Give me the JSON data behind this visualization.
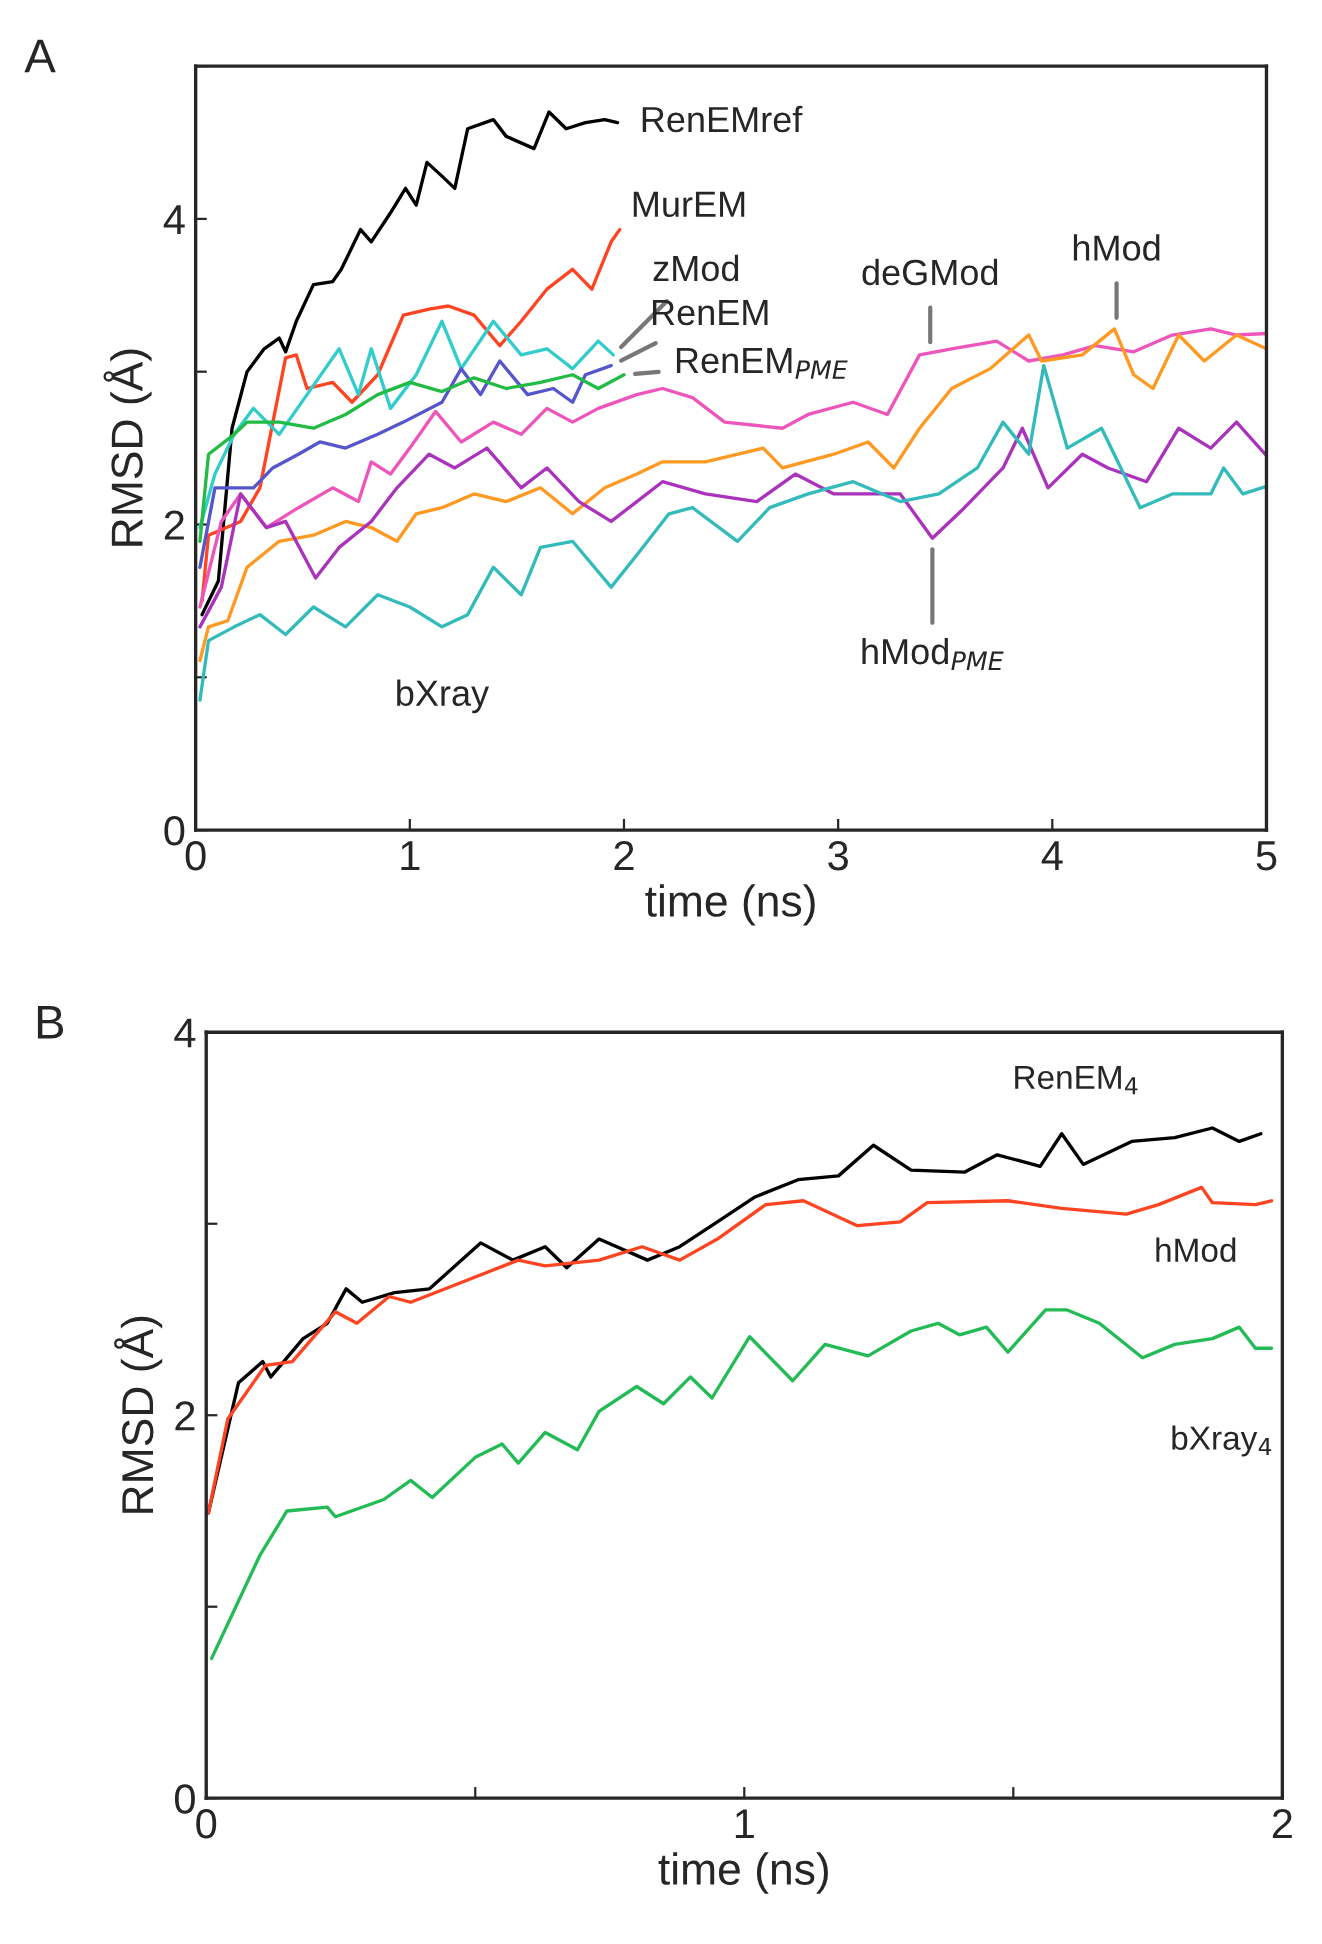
{
  "chart_data": [
    {
      "type": "line",
      "title": "A",
      "xlabel": "time (ns)",
      "ylabel": "RMSD (Å)",
      "xlim": [
        0,
        5
      ],
      "ylim": [
        0,
        5
      ],
      "xticks": [
        0,
        1,
        2,
        3,
        4,
        5
      ],
      "yticks": [
        0,
        {
          "value": 1,
          "label": null
        },
        2,
        {
          "value": 3,
          "label": null
        },
        4,
        {
          "value": 5,
          "label": null
        }
      ],
      "grid": false,
      "legend": false,
      "line_style": "solid",
      "marker": "none",
      "series": [
        {
          "color": "#000000",
          "x": [
            0.03,
            0.106,
            0.17,
            0.24,
            0.32,
            0.39,
            0.42,
            0.47,
            0.55,
            0.64,
            0.68,
            0.77,
            0.82,
            0.91,
            0.98,
            1.03,
            1.08,
            1.15,
            1.21,
            1.27,
            1.39,
            1.45,
            1.58,
            1.65,
            1.73,
            1.82,
            1.91,
            1.97
          ],
          "values": [
            1.41,
            1.63,
            2.63,
            3.0,
            3.15,
            3.22,
            3.13,
            3.33,
            3.57,
            3.59,
            3.67,
            3.93,
            3.85,
            4.04,
            4.2,
            4.09,
            4.37,
            4.28,
            4.2,
            4.59,
            4.65,
            4.54,
            4.46,
            4.7,
            4.59,
            4.63,
            4.65,
            4.63
          ]
        },
        {
          "color": "#ff4422",
          "x": [
            0.03,
            0.06,
            0.21,
            0.3,
            0.42,
            0.47,
            0.52,
            0.64,
            0.73,
            0.85,
            0.97,
            1.09,
            1.18,
            1.3,
            1.42,
            1.52,
            1.64,
            1.76,
            1.85,
            1.94,
            1.98
          ],
          "values": [
            1.5,
            1.93,
            2.02,
            2.24,
            3.09,
            3.11,
            2.89,
            2.93,
            2.8,
            2.98,
            3.37,
            3.41,
            3.43,
            3.37,
            3.17,
            3.33,
            3.54,
            3.67,
            3.54,
            3.85,
            3.93
          ]
        },
        {
          "color": "#33cccc",
          "x": [
            0.02,
            0.09,
            0.18,
            0.27,
            0.39,
            0.52,
            0.67,
            0.76,
            0.82,
            0.91,
            1.03,
            1.15,
            1.24,
            1.39,
            1.52,
            1.64,
            1.76,
            1.88,
            1.95
          ],
          "values": [
            1.98,
            2.33,
            2.59,
            2.76,
            2.59,
            2.85,
            3.15,
            2.85,
            3.15,
            2.76,
            2.98,
            3.33,
            3.02,
            3.33,
            3.11,
            3.15,
            3.02,
            3.2,
            3.11
          ]
        },
        {
          "color": "#5555cc",
          "x": [
            0.02,
            0.09,
            0.18,
            0.27,
            0.36,
            0.48,
            0.58,
            0.7,
            0.85,
            0.97,
            1.15,
            1.24,
            1.33,
            1.42,
            1.55,
            1.67,
            1.76,
            1.82,
            1.94
          ],
          "values": [
            1.72,
            2.24,
            2.24,
            2.24,
            2.37,
            2.46,
            2.54,
            2.5,
            2.59,
            2.67,
            2.8,
            3.02,
            2.85,
            3.07,
            2.85,
            2.89,
            2.8,
            2.98,
            3.04
          ]
        },
        {
          "color": "#22bb44",
          "x": [
            0.02,
            0.06,
            0.18,
            0.24,
            0.39,
            0.55,
            0.7,
            0.85,
            1.0,
            1.15,
            1.3,
            1.45,
            1.61,
            1.76,
            1.88,
            2.0
          ],
          "values": [
            1.89,
            2.46,
            2.59,
            2.67,
            2.67,
            2.63,
            2.72,
            2.85,
            2.93,
            2.87,
            2.96,
            2.89,
            2.93,
            2.98,
            2.89,
            2.98
          ]
        },
        {
          "color": "#ee55bb",
          "x": [
            0.02,
            0.12,
            0.21,
            0.33,
            0.48,
            0.64,
            0.76,
            0.82,
            0.91,
            1.0,
            1.12,
            1.24,
            1.39,
            1.52,
            1.64,
            1.76,
            1.88,
            2.06,
            2.18,
            2.32,
            2.47,
            2.74,
            2.86,
            3.07,
            3.23,
            3.38,
            3.53,
            3.74,
            3.89,
            4.05,
            4.2,
            4.38,
            4.56,
            4.74,
            4.86,
            5.0
          ],
          "values": [
            1.46,
            2.02,
            2.2,
            1.98,
            2.11,
            2.24,
            2.15,
            2.41,
            2.33,
            2.5,
            2.74,
            2.54,
            2.67,
            2.59,
            2.76,
            2.67,
            2.76,
            2.85,
            2.89,
            2.83,
            2.67,
            2.63,
            2.72,
            2.8,
            2.72,
            3.11,
            3.15,
            3.2,
            3.07,
            3.11,
            3.17,
            3.13,
            3.24,
            3.28,
            3.24,
            3.25
          ]
        },
        {
          "color": "#ff9922",
          "x": [
            0.02,
            0.06,
            0.15,
            0.24,
            0.39,
            0.55,
            0.7,
            0.82,
            0.94,
            1.03,
            1.15,
            1.3,
            1.45,
            1.61,
            1.76,
            1.91,
            2.06,
            2.18,
            2.38,
            2.65,
            2.74,
            2.98,
            3.14,
            3.26,
            3.38,
            3.53,
            3.71,
            3.89,
            3.95,
            4.14,
            4.29,
            4.38,
            4.47,
            4.59,
            4.71,
            4.86,
            5.0
          ],
          "values": [
            1.11,
            1.33,
            1.37,
            1.72,
            1.89,
            1.93,
            2.02,
            1.98,
            1.89,
            2.07,
            2.11,
            2.2,
            2.15,
            2.24,
            2.07,
            2.24,
            2.33,
            2.41,
            2.41,
            2.5,
            2.37,
            2.46,
            2.54,
            2.37,
            2.63,
            2.89,
            3.02,
            3.24,
            3.07,
            3.11,
            3.28,
            2.98,
            2.89,
            3.24,
            3.07,
            3.24,
            3.15
          ]
        },
        {
          "color": "#aa33bb",
          "x": [
            0.02,
            0.12,
            0.21,
            0.33,
            0.42,
            0.56,
            0.67,
            0.82,
            0.94,
            1.09,
            1.21,
            1.36,
            1.52,
            1.64,
            1.79,
            1.94,
            2.06,
            2.18,
            2.38,
            2.62,
            2.8,
            2.98,
            3.14,
            3.29,
            3.44,
            3.59,
            3.77,
            3.86,
            3.98,
            4.14,
            4.26,
            4.44,
            4.59,
            4.74,
            4.86,
            5.0
          ],
          "values": [
            1.33,
            1.59,
            2.2,
            1.98,
            2.02,
            1.65,
            1.85,
            2.02,
            2.24,
            2.46,
            2.37,
            2.5,
            2.24,
            2.37,
            2.15,
            2.02,
            2.15,
            2.28,
            2.2,
            2.15,
            2.33,
            2.2,
            2.2,
            2.2,
            1.91,
            2.11,
            2.37,
            2.63,
            2.24,
            2.46,
            2.37,
            2.28,
            2.63,
            2.5,
            2.67,
            2.45
          ]
        },
        {
          "color": "#33bbbb",
          "x": [
            0.02,
            0.06,
            0.18,
            0.3,
            0.42,
            0.55,
            0.7,
            0.85,
            1.0,
            1.15,
            1.27,
            1.39,
            1.52,
            1.61,
            1.76,
            1.94,
            2.06,
            2.21,
            2.32,
            2.53,
            2.68,
            2.86,
            3.07,
            3.29,
            3.47,
            3.65,
            3.77,
            3.89,
            3.96,
            4.07,
            4.23,
            4.41,
            4.56,
            4.74,
            4.8,
            4.89,
            5.0
          ],
          "values": [
            0.85,
            1.24,
            1.33,
            1.41,
            1.28,
            1.46,
            1.33,
            1.54,
            1.46,
            1.33,
            1.41,
            1.72,
            1.54,
            1.85,
            1.89,
            1.59,
            1.8,
            2.07,
            2.11,
            1.89,
            2.11,
            2.2,
            2.28,
            2.15,
            2.2,
            2.37,
            2.67,
            2.46,
            3.04,
            2.5,
            2.63,
            2.11,
            2.2,
            2.2,
            2.37,
            2.2,
            2.25
          ]
        }
      ],
      "annotations": [
        {
          "text": "RenEMref",
          "x": 1.97,
          "y": 4.63
        },
        {
          "text": "MurEM",
          "x": 1.98,
          "y": 3.93
        },
        {
          "text": "zMod",
          "x": 1.95,
          "y": 3.11
        },
        {
          "text": "RenEM",
          "x": 1.94,
          "y": 3.04
        },
        {
          "text": "RenEM$_{PME}$",
          "x": 2.0,
          "y": 2.98
        },
        {
          "text": "deGMod",
          "x": 3.43,
          "y": 3.12
        },
        {
          "text": "hMod",
          "x": 4.3,
          "y": 3.28
        },
        {
          "text": "hMod$_{PME}$",
          "x": 3.44,
          "y": 1.91
        },
        {
          "text": "bXray",
          "x": 1.15,
          "y": 1.33
        }
      ]
    },
    {
      "type": "line",
      "title": "B",
      "xlabel": "time (ns)",
      "ylabel": "RMSD (Å)",
      "xlim": [
        0,
        2
      ],
      "ylim": [
        0,
        4
      ],
      "xticks": [
        0,
        {
          "value": 0.5,
          "label": null
        },
        1,
        {
          "value": 1.5,
          "label": null
        },
        2
      ],
      "yticks": [
        0,
        {
          "value": 1,
          "label": null
        },
        2,
        {
          "value": 3,
          "label": null
        },
        4
      ],
      "grid": false,
      "legend": false,
      "line_style": "solid",
      "marker": "none",
      "series": [
        {
          "color": "#000000",
          "x": [
            0.004,
            0.06,
            0.105,
            0.12,
            0.18,
            0.225,
            0.26,
            0.29,
            0.35,
            0.415,
            0.51,
            0.57,
            0.63,
            0.67,
            0.73,
            0.82,
            0.88,
            0.95,
            1.02,
            1.1,
            1.175,
            1.24,
            1.31,
            1.41,
            1.47,
            1.55,
            1.59,
            1.63,
            1.72,
            1.8,
            1.87,
            1.92,
            1.96
          ],
          "values": [
            1.49,
            2.17,
            2.28,
            2.2,
            2.4,
            2.48,
            2.66,
            2.59,
            2.64,
            2.66,
            2.9,
            2.81,
            2.88,
            2.77,
            2.92,
            2.81,
            2.88,
            3.01,
            3.14,
            3.23,
            3.25,
            3.41,
            3.28,
            3.27,
            3.36,
            3.3,
            3.47,
            3.31,
            3.43,
            3.45,
            3.5,
            3.43,
            3.47
          ]
        },
        {
          "color": "#ff4422",
          "x": [
            0.004,
            0.04,
            0.11,
            0.16,
            0.24,
            0.28,
            0.34,
            0.38,
            0.48,
            0.58,
            0.63,
            0.73,
            0.81,
            0.88,
            0.95,
            1.04,
            1.11,
            1.21,
            1.29,
            1.34,
            1.49,
            1.59,
            1.71,
            1.77,
            1.85,
            1.87,
            1.95,
            1.98
          ],
          "values": [
            1.49,
            1.98,
            2.26,
            2.28,
            2.54,
            2.48,
            2.62,
            2.59,
            2.7,
            2.81,
            2.78,
            2.81,
            2.88,
            2.81,
            2.92,
            3.1,
            3.12,
            2.99,
            3.01,
            3.11,
            3.12,
            3.08,
            3.05,
            3.1,
            3.19,
            3.11,
            3.1,
            3.12
          ]
        },
        {
          "color": "#22bb55",
          "x": [
            0.01,
            0.05,
            0.1,
            0.15,
            0.225,
            0.24,
            0.33,
            0.38,
            0.42,
            0.5,
            0.55,
            0.58,
            0.63,
            0.69,
            0.73,
            0.8,
            0.85,
            0.9,
            0.94,
            1.01,
            1.09,
            1.15,
            1.23,
            1.31,
            1.36,
            1.4,
            1.45,
            1.49,
            1.56,
            1.6,
            1.66,
            1.74,
            1.8,
            1.87,
            1.92,
            1.95,
            1.98
          ],
          "values": [
            0.73,
            0.97,
            1.27,
            1.5,
            1.52,
            1.47,
            1.56,
            1.66,
            1.57,
            1.78,
            1.85,
            1.75,
            1.91,
            1.82,
            2.02,
            2.15,
            2.06,
            2.2,
            2.09,
            2.41,
            2.18,
            2.37,
            2.31,
            2.44,
            2.48,
            2.42,
            2.46,
            2.33,
            2.55,
            2.55,
            2.48,
            2.3,
            2.37,
            2.4,
            2.46,
            2.35,
            2.35
          ]
        }
      ],
      "annotations": [
        {
          "text": "RenEM$_{4}$",
          "x": 1.72,
          "y": 3.43
        },
        {
          "text": "hMod",
          "x": 1.71,
          "y": 3.05
        },
        {
          "text": "bXray$_{4}$",
          "x": 1.74,
          "y": 2.3
        }
      ]
    }
  ]
}
